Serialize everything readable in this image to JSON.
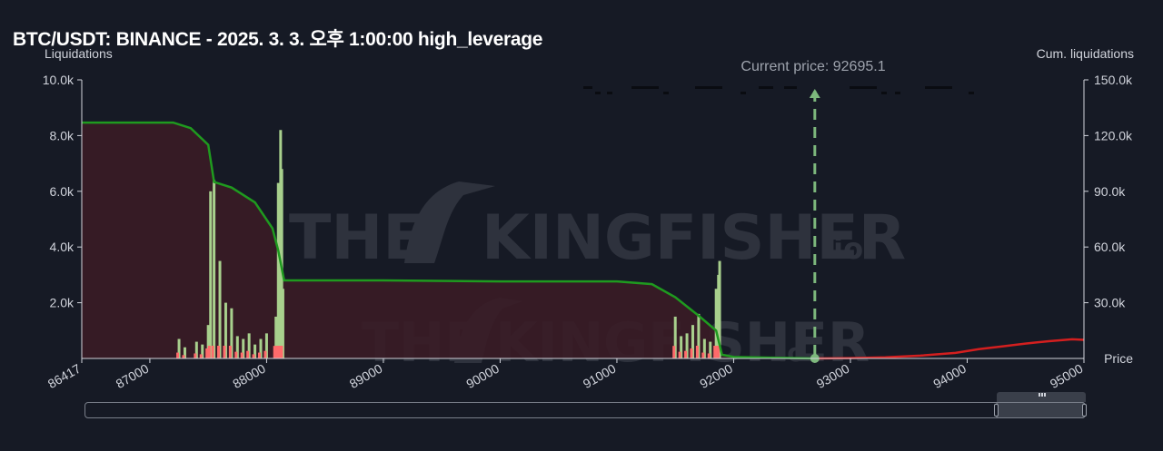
{
  "title": "BTC/USDT: BINANCE - 2025. 3. 3. 오후 1:00:00 high_leverage",
  "watermark": {
    "brand": "THE",
    "brand2": "KINGFISHER",
    "suffix": ".io"
  },
  "colors": {
    "background": "#161a25",
    "long_fill": "#3a1c26",
    "cum_long_line": "#1f9a1f",
    "cum_short_line": "#d41f1f",
    "bar_green": "#a8d08d",
    "bar_red": "#ff6b6b",
    "current_price_line": "#7db87d"
  },
  "chart_data": {
    "type": "bar",
    "left_axis_label": "Liquidations",
    "right_axis_label": "Cum. liquidations",
    "x_axis_label": "Price",
    "xlim": [
      86417,
      95000
    ],
    "ylim_left": [
      0,
      10000
    ],
    "ylim_right": [
      0,
      150000
    ],
    "x_ticks": [
      "86417",
      "87000",
      "88000",
      "89000",
      "90000",
      "91000",
      "92000",
      "93000",
      "94000",
      "95000"
    ],
    "y_left_ticks": [
      "2.0k",
      "4.0k",
      "6.0k",
      "8.0k",
      "10.0k"
    ],
    "y_right_ticks": [
      "30.0k",
      "60.0k",
      "90.0k",
      "120.0k",
      "150.0k"
    ],
    "current_price": 92695.1,
    "current_price_label": "Current price: 92695.1",
    "cum_long_liquidations": {
      "x": [
        86417,
        87200,
        87350,
        87500,
        87550,
        87700,
        87900,
        88050,
        88100,
        88150,
        89000,
        90000,
        91000,
        91300,
        91500,
        91700,
        91850,
        91900,
        92000,
        92695
      ],
      "y": [
        127000,
        127000,
        124000,
        115000,
        95000,
        92000,
        84000,
        70000,
        58000,
        42000,
        42000,
        41500,
        41500,
        40000,
        33000,
        23000,
        15000,
        2000,
        800,
        0
      ]
    },
    "cum_short_liquidations": {
      "x": [
        92695,
        93000,
        93300,
        93600,
        93900,
        94100,
        94300,
        94500,
        94700,
        94900,
        95000
      ],
      "y": [
        0,
        200,
        600,
        1500,
        3000,
        5000,
        6500,
        8000,
        9300,
        10300,
        10000
      ]
    },
    "liquidation_bars": {
      "x": [
        87250,
        87300,
        87400,
        87450,
        87500,
        87520,
        87550,
        87600,
        87650,
        87700,
        87750,
        87800,
        87850,
        87900,
        87950,
        88000,
        88080,
        88100,
        88120,
        88130,
        88140,
        91500,
        91550,
        91600,
        91650,
        91700,
        91750,
        91800,
        91850,
        91870,
        91880
      ],
      "y": [
        700,
        400,
        600,
        500,
        1200,
        6000,
        6400,
        3500,
        2000,
        1800,
        800,
        700,
        900,
        500,
        700,
        900,
        1500,
        6300,
        8200,
        6800,
        2500,
        1500,
        800,
        900,
        1200,
        1600,
        700,
        600,
        2500,
        3000,
        3500
      ]
    }
  }
}
